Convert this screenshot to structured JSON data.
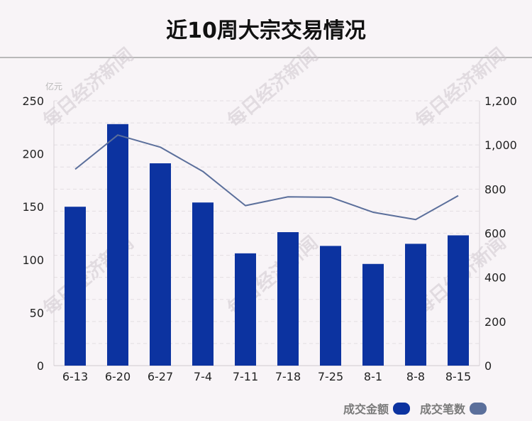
{
  "title": "近10周大宗交易情况",
  "watermark": "每日经济新闻",
  "chart_data": {
    "type": "bar",
    "title": "近10周大宗交易情况",
    "categories": [
      "6-13",
      "6-20",
      "6-27",
      "7-4",
      "7-11",
      "7-18",
      "7-25",
      "8-1",
      "8-8",
      "8-15"
    ],
    "y_left": {
      "unit": "亿元",
      "lim": [
        0,
        250
      ],
      "ticks": [
        "0",
        "50",
        "100",
        "150",
        "200",
        "250"
      ]
    },
    "y_right": {
      "unit": "",
      "lim": [
        0,
        1200
      ],
      "ticks": [
        "0",
        "200",
        "400",
        "600",
        "800",
        "1,000",
        "1,200"
      ]
    },
    "series": [
      {
        "name": "成交金额",
        "type": "bar",
        "axis": "left",
        "color": "#0c33a0",
        "values": [
          150,
          228,
          191,
          154,
          106,
          126,
          113,
          96,
          115,
          123
        ]
      },
      {
        "name": "成交笔数",
        "type": "line",
        "axis": "right",
        "color": "#5b6f9b",
        "values": [
          890,
          1045,
          990,
          880,
          725,
          765,
          763,
          695,
          662,
          770
        ]
      }
    ],
    "grid": true,
    "legend_position": "bottom-right"
  }
}
